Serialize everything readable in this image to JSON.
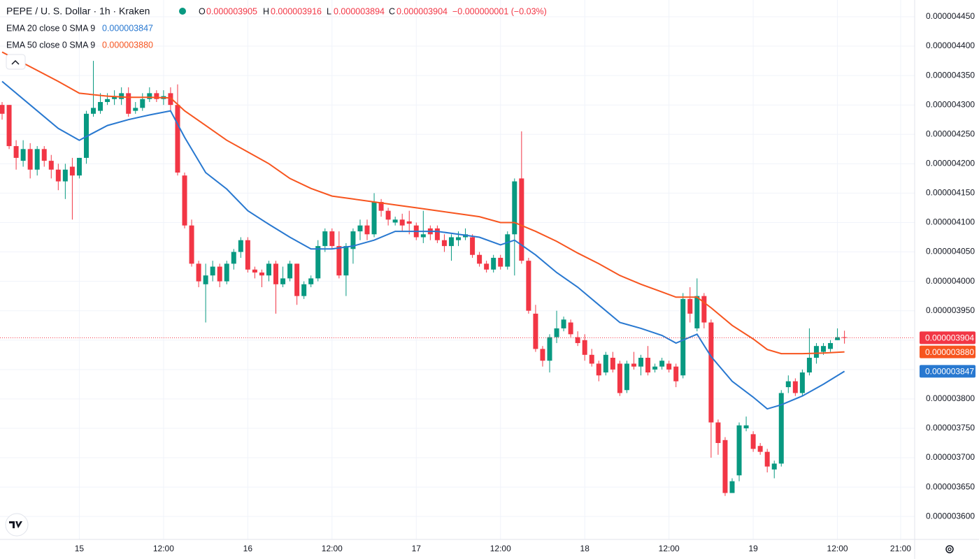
{
  "chart_data": {
    "type": "candlestick",
    "title": "PEPE / U. S. Dollar · 1h · Kraken",
    "ohlc_legend": {
      "o_label": "O",
      "open": "0.000003905",
      "h_label": "H",
      "high": "0.000003916",
      "l_label": "L",
      "low": "0.000003894",
      "c_label": "C",
      "close": "0.000003904",
      "change": "−0.000000001 (−0.03%)"
    },
    "up_color": "#089981",
    "down_color": "#f23645",
    "open": [
      4.3e-06,
      4.3e-06,
      4.23e-06,
      4.205e-06,
      4.225e-06,
      4.19e-06,
      4.225e-06,
      4.205e-06,
      4.19e-06,
      4.17e-06,
      4.195e-06,
      4.18e-06,
      4.21e-06,
      4.285e-06,
      4.29e-06,
      4.305e-06,
      4.31e-06,
      4.31e-06,
      4.32e-06,
      4.29e-06,
      4.295e-06,
      4.31e-06,
      4.32e-06,
      4.31e-06,
      4.32e-06,
      4.3e-06,
      4.18e-06,
      4.095e-06,
      4.03e-06,
      3.995e-06,
      4.01e-06,
      4.025e-06,
      4e-06,
      4.03e-06,
      4.05e-06,
      4.07e-06,
      4.02e-06,
      4.015e-06,
      4.01e-06,
      4.03e-06,
      3.995e-06,
      4.005e-06,
      4.03e-06,
      3.975e-06,
      3.995e-06,
      4.005e-06,
      4.06e-06,
      4.085e-06,
      4.06e-06,
      4.01e-06,
      4.055e-06,
      4.085e-06,
      4.095e-06,
      4.08e-06,
      4.135e-06,
      4.12e-06,
      4.1e-06,
      4.105e-06,
      4.102e-06,
      4.095e-06,
      4.075e-06,
      4.09e-06,
      4.09e-06,
      4.07e-06,
      4.06e-06,
      4.07e-06,
      4.075e-06,
      4.075e-06,
      4.045e-06,
      4.03e-06,
      4.02e-06,
      4.04e-06,
      4.025e-06,
      4.08e-06,
      4.175e-06,
      4.035e-06,
      3.945e-06,
      3.885e-06,
      3.865e-06,
      3.905e-06,
      3.92e-06,
      3.93e-06,
      3.905e-06,
      3.9e-06,
      3.875e-06,
      3.86e-06,
      3.845e-06,
      3.87e-06,
      3.86e-06,
      3.815e-06,
      3.86e-06,
      3.855e-06,
      3.87e-06,
      3.85e-06,
      3.855e-06,
      3.86e-06,
      3.855e-06,
      3.84e-06,
      3.97e-06,
      3.92e-06,
      3.975e-06,
      3.93e-06,
      3.76e-06,
      3.73e-06,
      3.64e-06,
      3.67e-06,
      3.75e-06,
      3.74e-06,
      3.72e-06,
      3.71e-06,
      3.68e-06,
      3.69e-06,
      3.82e-06,
      3.83e-06,
      3.81e-06,
      3.845e-06,
      3.87e-06,
      3.88e-06,
      3.885e-06,
      3.9e-06,
      3.905e-06
    ],
    "high": [
      4.305e-06,
      4.3e-06,
      4.24e-06,
      4.24e-06,
      4.235e-06,
      4.23e-06,
      4.23e-06,
      4.215e-06,
      4.2e-06,
      4.2e-06,
      4.21e-06,
      4.21e-06,
      4.29e-06,
      4.375e-06,
      4.32e-06,
      4.32e-06,
      4.325e-06,
      4.33e-06,
      4.33e-06,
      4.305e-06,
      4.32e-06,
      4.33e-06,
      4.325e-06,
      4.325e-06,
      4.33e-06,
      4.335e-06,
      4.185e-06,
      4.105e-06,
      4.035e-06,
      4.03e-06,
      4.035e-06,
      4.03e-06,
      4.035e-06,
      4.055e-06,
      4.075e-06,
      4.075e-06,
      4.025e-06,
      4.02e-06,
      4.035e-06,
      4.035e-06,
      4.025e-06,
      4.035e-06,
      4.03e-06,
      4e-06,
      4.01e-06,
      4.07e-06,
      4.09e-06,
      4.09e-06,
      4.085e-06,
      4.065e-06,
      4.09e-06,
      4.105e-06,
      4.105e-06,
      4.15e-06,
      4.14e-06,
      4.125e-06,
      4.11e-06,
      4.115e-06,
      4.12e-06,
      4.1e-06,
      4.12e-06,
      4.095e-06,
      4.095e-06,
      4.08e-06,
      4.08e-06,
      4.085e-06,
      4.09e-06,
      4.08e-06,
      4.05e-06,
      4.035e-06,
      4.045e-06,
      4.045e-06,
      4.085e-06,
      4.175e-06,
      4.255e-06,
      4.04e-06,
      3.96e-06,
      3.89e-06,
      3.91e-06,
      3.95e-06,
      3.94e-06,
      3.935e-06,
      3.915e-06,
      3.91e-06,
      3.885e-06,
      3.865e-06,
      3.88e-06,
      3.88e-06,
      3.865e-06,
      3.865e-06,
      3.88e-06,
      3.875e-06,
      3.89e-06,
      3.86e-06,
      3.87e-06,
      3.865e-06,
      3.86e-06,
      3.98e-06,
      3.99e-06,
      4.005e-06,
      3.98e-06,
      3.935e-06,
      3.765e-06,
      3.735e-06,
      3.665e-06,
      3.76e-06,
      3.77e-06,
      3.745e-06,
      3.725e-06,
      3.715e-06,
      3.695e-06,
      3.815e-06,
      3.84e-06,
      3.835e-06,
      3.85e-06,
      3.92e-06,
      3.895e-06,
      3.895e-06,
      3.9e-06,
      3.92e-06,
      3.916e-06
    ],
    "low": [
      4.275e-06,
      4.225e-06,
      4.19e-06,
      4.195e-06,
      4.175e-06,
      4.18e-06,
      4.195e-06,
      4.175e-06,
      4.155e-06,
      4.14e-06,
      4.105e-06,
      4.175e-06,
      4.2e-06,
      4.28e-06,
      4.285e-06,
      4.3e-06,
      4.3e-06,
      4.3e-06,
      4.28e-06,
      4.285e-06,
      4.29e-06,
      4.305e-06,
      4.305e-06,
      4.3e-06,
      4.29e-06,
      4.18e-06,
      4.09e-06,
      4.025e-06,
      3.99e-06,
      3.93e-06,
      4e-06,
      3.99e-06,
      3.995e-06,
      4.02e-06,
      4.04e-06,
      4.015e-06,
      4.005e-06,
      3.99e-06,
      4e-06,
      3.945e-06,
      3.99e-06,
      4e-06,
      3.96e-06,
      3.97e-06,
      3.99e-06,
      4e-06,
      4.05e-06,
      4.055e-06,
      4.005e-06,
      3.975e-06,
      4.03e-06,
      4.07e-06,
      4.07e-06,
      4.075e-06,
      4.11e-06,
      4.095e-06,
      4.095e-06,
      4.085e-06,
      4.08e-06,
      4.07e-06,
      4.065e-06,
      4.07e-06,
      4.065e-06,
      4.05e-06,
      4.035e-06,
      4.06e-06,
      4.07e-06,
      4.04e-06,
      4.025e-06,
      4.015e-06,
      4.015e-06,
      4.02e-06,
      4.02e-06,
      4.01e-06,
      4.03e-06,
      3.945e-06,
      3.88e-06,
      3.855e-06,
      3.845e-06,
      3.895e-06,
      3.915e-06,
      3.905e-06,
      3.89e-06,
      3.865e-06,
      3.855e-06,
      3.83e-06,
      3.84e-06,
      3.845e-06,
      3.805e-06,
      3.81e-06,
      3.85e-06,
      3.84e-06,
      3.84e-06,
      3.845e-06,
      3.85e-06,
      3.845e-06,
      3.82e-06,
      3.835e-06,
      3.93e-06,
      3.915e-06,
      3.92e-06,
      3.7e-06,
      3.705e-06,
      3.635e-06,
      3.64e-06,
      3.66e-06,
      3.745e-06,
      3.71e-06,
      3.705e-06,
      3.675e-06,
      3.665e-06,
      3.685e-06,
      3.81e-06,
      3.805e-06,
      3.805e-06,
      3.84e-06,
      3.86e-06,
      3.875e-06,
      3.88e-06,
      3.9e-06,
      3.894e-06
    ],
    "close": [
      4.285e-06,
      4.23e-06,
      4.21e-06,
      4.225e-06,
      4.19e-06,
      4.225e-06,
      4.205e-06,
      4.19e-06,
      4.17e-06,
      4.19e-06,
      4.18e-06,
      4.21e-06,
      4.285e-06,
      4.295e-06,
      4.305e-06,
      4.31e-06,
      4.315e-06,
      4.32e-06,
      4.285e-06,
      4.295e-06,
      4.31e-06,
      4.32e-06,
      4.31e-06,
      4.315e-06,
      4.3e-06,
      4.185e-06,
      4.095e-06,
      4.03e-06,
      4e-06,
      4.01e-06,
      4.025e-06,
      4e-06,
      4.03e-06,
      4.05e-06,
      4.07e-06,
      4.02e-06,
      4.015e-06,
      4.01e-06,
      4.03e-06,
      3.995e-06,
      4.005e-06,
      4.03e-06,
      3.975e-06,
      3.995e-06,
      4.005e-06,
      4.06e-06,
      4.085e-06,
      4.06e-06,
      4.01e-06,
      4.06e-06,
      4.085e-06,
      4.095e-06,
      4.08e-06,
      4.135e-06,
      4.12e-06,
      4.105e-06,
      4.105e-06,
      4.095e-06,
      4.098e-06,
      4.075e-06,
      4.08e-06,
      4.08e-06,
      4.07e-06,
      4.06e-06,
      4.075e-06,
      4.075e-06,
      4.08e-06,
      4.045e-06,
      4.03e-06,
      4.02e-06,
      4.04e-06,
      4.025e-06,
      4.08e-06,
      4.17e-06,
      4.035e-06,
      3.95e-06,
      3.885e-06,
      3.865e-06,
      3.905e-06,
      3.92e-06,
      3.935e-06,
      3.91e-06,
      3.895e-06,
      3.875e-06,
      3.86e-06,
      3.84e-06,
      3.875e-06,
      3.85e-06,
      3.81e-06,
      3.86e-06,
      3.855e-06,
      3.87e-06,
      3.845e-06,
      3.855e-06,
      3.865e-06,
      3.85e-06,
      3.83e-06,
      3.97e-06,
      3.945e-06,
      3.975e-06,
      3.93e-06,
      3.76e-06,
      3.725e-06,
      3.64e-06,
      3.66e-06,
      3.755e-06,
      3.755e-06,
      3.715e-06,
      3.71e-06,
      3.685e-06,
      3.69e-06,
      3.81e-06,
      3.83e-06,
      3.81e-06,
      3.845e-06,
      3.87e-06,
      3.89e-06,
      3.89e-06,
      3.895e-06,
      3.905e-06,
      3.904e-06
    ],
    "last_label": "0.000003904",
    "series": [
      {
        "name": "EMA 20 close 0 SMA 9",
        "color": "#2878d0",
        "value_label": "0.000003847",
        "x": [
          0,
          4,
          8,
          11,
          15,
          18,
          21,
          24,
          26,
          29,
          32,
          35,
          38,
          41,
          44,
          47,
          50,
          53,
          56,
          59,
          62,
          65,
          68,
          71,
          73,
          76,
          79,
          82,
          85,
          88,
          91,
          94,
          96,
          99,
          101,
          104,
          107,
          109,
          111,
          114,
          117,
          120
        ],
        "values": [
          4.34e-06,
          4.3e-06,
          4.26e-06,
          4.24e-06,
          4.265e-06,
          4.275e-06,
          4.283e-06,
          4.29e-06,
          4.245e-06,
          4.185e-06,
          4.157e-06,
          4.12e-06,
          4.097e-06,
          4.075e-06,
          4.055e-06,
          4.055e-06,
          4.06e-06,
          4.07e-06,
          4.085e-06,
          4.085e-06,
          4.085e-06,
          4.08e-06,
          4.075e-06,
          4.062e-06,
          4.07e-06,
          4.045e-06,
          4.015e-06,
          3.99e-06,
          3.96e-06,
          3.93e-06,
          3.92e-06,
          3.908e-06,
          3.895e-06,
          3.91e-06,
          3.872e-06,
          3.83e-06,
          3.803e-06,
          3.783e-06,
          3.79e-06,
          3.805e-06,
          3.825e-06,
          3.847e-06
        ]
      },
      {
        "name": "EMA 50 close 0 SMA 9",
        "color": "#f7551f",
        "value_label": "0.000003880",
        "x": [
          0,
          4,
          8,
          11,
          15,
          18,
          21,
          24,
          26,
          29,
          32,
          35,
          38,
          41,
          44,
          47,
          50,
          53,
          56,
          59,
          62,
          65,
          68,
          71,
          73,
          76,
          79,
          82,
          85,
          88,
          91,
          94,
          96,
          99,
          101,
          104,
          107,
          109,
          111,
          114,
          117,
          120
        ],
        "values": [
          4.39e-06,
          4.365e-06,
          4.34e-06,
          4.32e-06,
          4.315e-06,
          4.313e-06,
          4.313e-06,
          4.312e-06,
          4.29e-06,
          4.265e-06,
          4.24e-06,
          4.22e-06,
          4.2e-06,
          4.175e-06,
          4.158e-06,
          4.145e-06,
          4.14e-06,
          4.135e-06,
          4.13e-06,
          4.125e-06,
          4.12e-06,
          4.115e-06,
          4.11e-06,
          4.1e-06,
          4.1e-06,
          4.085e-06,
          4.068e-06,
          4.048e-06,
          4.03e-06,
          4.01e-06,
          3.995e-06,
          3.982e-06,
          3.973e-06,
          3.973e-06,
          3.955e-06,
          3.925e-06,
          3.902e-06,
          3.884e-06,
          3.877e-06,
          3.877e-06,
          3.878e-06,
          3.88e-06
        ]
      }
    ],
    "xlim": [
      -0.3,
      130
    ],
    "xticks": [
      {
        "value": 11,
        "label": "15"
      },
      {
        "value": 23,
        "label": "12:00"
      },
      {
        "value": 35,
        "label": "16"
      },
      {
        "value": 47,
        "label": "12:00"
      },
      {
        "value": 59,
        "label": "17"
      },
      {
        "value": 71,
        "label": "12:00"
      },
      {
        "value": 83,
        "label": "18"
      },
      {
        "value": 95,
        "label": "12:00"
      },
      {
        "value": 107,
        "label": "19"
      },
      {
        "value": 119,
        "label": "12:00"
      },
      {
        "value": 128,
        "label": "21:00"
      }
    ],
    "ylim": [
      3.561e-06,
      4.4785e-06
    ],
    "yticks": [
      {
        "value": 3.6e-06,
        "label": "0.000003600"
      },
      {
        "value": 3.65e-06,
        "label": "0.000003650"
      },
      {
        "value": 3.7e-06,
        "label": "0.000003700"
      },
      {
        "value": 3.75e-06,
        "label": "0.000003750"
      },
      {
        "value": 3.8e-06,
        "label": "0.000003800"
      },
      {
        "value": 3.85e-06,
        "label": "0.000003850"
      },
      {
        "value": 3.9e-06,
        "label": "0.000003900"
      },
      {
        "value": 3.95e-06,
        "label": "0.000003950"
      },
      {
        "value": 4e-06,
        "label": "0.000004000"
      },
      {
        "value": 4.05e-06,
        "label": "0.000004050"
      },
      {
        "value": 4.1e-06,
        "label": "0.000004100"
      },
      {
        "value": 4.15e-06,
        "label": "0.000004150"
      },
      {
        "value": 4.2e-06,
        "label": "0.000004200"
      },
      {
        "value": 4.25e-06,
        "label": "0.000004250"
      },
      {
        "value": 4.3e-06,
        "label": "0.000004300"
      },
      {
        "value": 4.35e-06,
        "label": "0.000004350"
      },
      {
        "value": 4.4e-06,
        "label": "0.000004400"
      },
      {
        "value": 4.45e-06,
        "label": "0.000004450"
      }
    ],
    "grid": true
  }
}
